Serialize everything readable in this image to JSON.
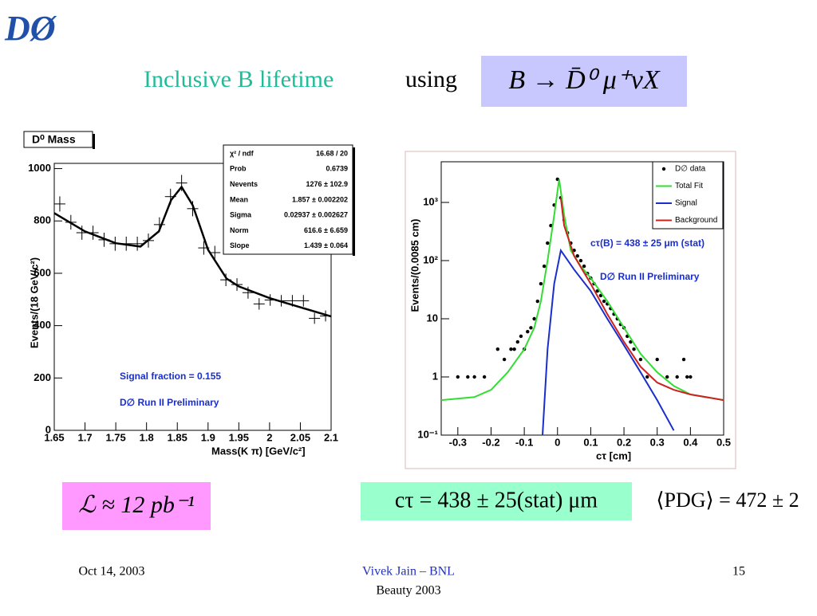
{
  "header": {
    "logo": "DØ",
    "title": "Inclusive B lifetime",
    "title_tail": "using",
    "formula": "B → D̄⁰ μ⁺νX"
  },
  "formulas": {
    "luminosity": "ℒ ≈ 12 pb⁻¹",
    "result": "cτ = 438 ± 25(stat) μm",
    "pdg": "⟨PDG⟩ = 472 ± 2"
  },
  "footer": {
    "date": "Oct 14, 2003",
    "author": "Vivek Jain – BNL",
    "event": "Beauty 2003",
    "page": "15"
  },
  "chart_data": [
    {
      "type": "scatter",
      "title": "D⁰ Mass",
      "x_label": "Mass(K π) [GeV/c²]",
      "y_label": "Events/(18 GeV/c²)",
      "xlim": [
        1.65,
        2.1
      ],
      "ylim": [
        0,
        1020
      ],
      "xticks": [
        1.65,
        1.7,
        1.75,
        1.8,
        1.85,
        1.9,
        1.95,
        2,
        2.05,
        2.1
      ],
      "yticks": [
        0,
        200,
        400,
        600,
        800,
        1000
      ],
      "annotations": [
        "Signal fraction = 0.155",
        "D∅ Run II Preliminary"
      ],
      "stats": [
        {
          "label": "χ² / ndf",
          "value": "16.68 / 20"
        },
        {
          "label": "Prob",
          "value": "0.6739"
        },
        {
          "label": "Nevents",
          "value": "1276 ± 102.9"
        },
        {
          "label": "Mean",
          "value": "1.857 ± 0.002202"
        },
        {
          "label": "Sigma",
          "value": "0.02937 ± 0.002627"
        },
        {
          "label": "Norm",
          "value": "616.6 ± 6.659"
        },
        {
          "label": "Slope",
          "value": "1.439 ± 0.064"
        }
      ],
      "series": [
        {
          "style": "errorbar",
          "color": "#000000",
          "x": [
            1.659,
            1.677,
            1.695,
            1.713,
            1.731,
            1.749,
            1.767,
            1.785,
            1.803,
            1.821,
            1.839,
            1.857,
            1.875,
            1.893,
            1.911,
            1.929,
            1.947,
            1.965,
            1.983,
            2.001,
            2.019,
            2.037,
            2.055,
            2.073,
            2.091
          ],
          "values": [
            865,
            795,
            755,
            755,
            728,
            713,
            713,
            713,
            725,
            786,
            893,
            945,
            847,
            697,
            679,
            575,
            557,
            526,
            483,
            498,
            495,
            495,
            495,
            428,
            437
          ],
          "errors": [
            29,
            28,
            27,
            27,
            27,
            27,
            27,
            27,
            27,
            28,
            30,
            31,
            29,
            26,
            26,
            24,
            24,
            23,
            22,
            22,
            22,
            22,
            22,
            21,
            21
          ]
        },
        {
          "style": "line",
          "color": "#000000",
          "x": [
            1.65,
            1.7,
            1.75,
            1.79,
            1.82,
            1.84,
            1.857,
            1.875,
            1.9,
            1.93,
            1.95,
            2,
            2.05,
            2.1
          ],
          "values": [
            830,
            760,
            715,
            702,
            760,
            880,
            930,
            860,
            690,
            580,
            550,
            505,
            470,
            435
          ]
        }
      ]
    },
    {
      "type": "scatter",
      "log_y": true,
      "x_label": "cτ [cm]",
      "y_label": "Events/(0.0085 cm)",
      "xlim": [
        -0.35,
        0.5
      ],
      "ylim": [
        0.1,
        5000
      ],
      "xticks": [
        -0.3,
        -0.2,
        -0.1,
        0,
        0.1,
        0.2,
        0.3,
        0.4,
        0.5
      ],
      "yticks": [
        {
          "value": 0.1,
          "label": "10⁻¹"
        },
        1,
        10,
        {
          "value": 100,
          "label": "10²"
        },
        {
          "value": 1000,
          "label": "10³"
        }
      ],
      "annotations": [
        "cτ(B) = 438 ± 25 μm (stat)",
        "D∅ Run II Preliminary"
      ],
      "series": [
        {
          "name": "D∅ data",
          "style": "points",
          "color": "#000000",
          "x": [
            -0.3,
            -0.27,
            -0.25,
            -0.22,
            -0.18,
            -0.16,
            -0.14,
            -0.13,
            -0.12,
            -0.11,
            -0.1,
            -0.09,
            -0.08,
            -0.07,
            -0.06,
            -0.05,
            -0.04,
            -0.03,
            -0.02,
            -0.01,
            0,
            0.01,
            0.02,
            0.03,
            0.04,
            0.05,
            0.06,
            0.07,
            0.08,
            0.09,
            0.1,
            0.11,
            0.12,
            0.13,
            0.14,
            0.15,
            0.16,
            0.17,
            0.18,
            0.19,
            0.2,
            0.21,
            0.22,
            0.23,
            0.25,
            0.27,
            0.3,
            0.33,
            0.36,
            0.38,
            0.39,
            0.4
          ],
          "values": [
            1,
            1,
            1,
            1,
            3,
            2,
            3,
            3,
            4,
            5,
            3,
            6,
            7,
            10,
            20,
            40,
            80,
            200,
            400,
            900,
            2500,
            1200,
            500,
            300,
            200,
            150,
            120,
            100,
            80,
            60,
            50,
            40,
            30,
            25,
            20,
            18,
            15,
            12,
            10,
            8,
            7,
            5,
            4,
            3,
            2,
            1,
            2,
            1,
            1,
            2,
            1,
            1
          ]
        },
        {
          "name": "Total Fit",
          "style": "line",
          "color": "#33dd33",
          "x": [
            -0.35,
            -0.25,
            -0.2,
            -0.15,
            -0.1,
            -0.07,
            -0.05,
            -0.03,
            -0.01,
            0.005,
            0.02,
            0.04,
            0.07,
            0.1,
            0.15,
            0.2,
            0.25,
            0.3,
            0.35,
            0.4,
            0.5
          ],
          "values": [
            0.4,
            0.45,
            0.6,
            1.2,
            3,
            7,
            20,
            100,
            600,
            2500,
            600,
            150,
            80,
            50,
            20,
            7,
            2.5,
            1.2,
            0.7,
            0.5,
            0.4
          ]
        },
        {
          "name": "Signal",
          "style": "line",
          "color": "#1a2ecc",
          "x": [
            -0.045,
            -0.03,
            -0.01,
            0.01,
            0.05,
            0.1,
            0.15,
            0.2,
            0.25,
            0.3,
            0.35
          ],
          "values": [
            0.1,
            3,
            40,
            150,
            70,
            30,
            10,
            3.5,
            1.2,
            0.4,
            0.12
          ]
        },
        {
          "name": "Background",
          "style": "line",
          "color": "#cc2222",
          "x": [
            0.01,
            0.02,
            0.05,
            0.1,
            0.15,
            0.2,
            0.25,
            0.3,
            0.35,
            0.4,
            0.5
          ],
          "values": [
            1200,
            400,
            120,
            40,
            12,
            4,
            1.5,
            0.8,
            0.6,
            0.5,
            0.4
          ]
        }
      ]
    }
  ]
}
